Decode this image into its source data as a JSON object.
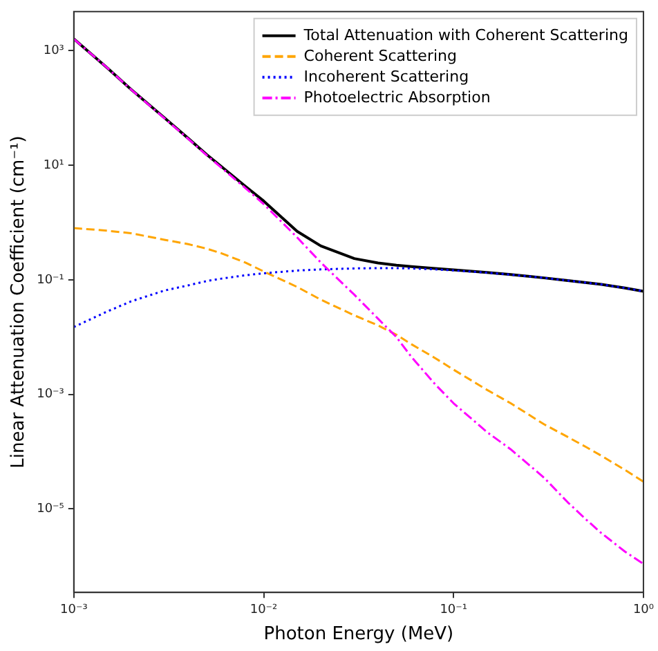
{
  "chart_data": {
    "type": "line",
    "xlabel": "Photon Energy (MeV)",
    "ylabel": "Linear Attenuation Coefficient (cm⁻¹)",
    "x": [
      0.001,
      0.0015,
      0.002,
      0.003,
      0.004,
      0.005,
      0.006,
      0.008,
      0.01,
      0.015,
      0.02,
      0.03,
      0.04,
      0.05,
      0.06,
      0.08,
      0.1,
      0.15,
      0.2,
      0.3,
      0.4,
      0.5,
      0.6,
      0.8,
      1.0
    ],
    "series": [
      {
        "name": "Total Attenuation with Coherent Scattering",
        "color": "#000000",
        "line_style": "solid",
        "values": [
          1600,
          501,
          211,
          67,
          29.5,
          15.4,
          9.4,
          4.3,
          2.37,
          0.7,
          0.39,
          0.235,
          0.197,
          0.18,
          0.17,
          0.158,
          0.149,
          0.134,
          0.124,
          0.108,
          0.097,
          0.089,
          0.083,
          0.072,
          0.063
        ]
      },
      {
        "name": "Coherent Scattering",
        "color": "#ffa500",
        "line_style": "dashed",
        "values": [
          0.8,
          0.72,
          0.65,
          0.5,
          0.42,
          0.35,
          0.29,
          0.2,
          0.14,
          0.075,
          0.045,
          0.024,
          0.016,
          0.011,
          0.0075,
          0.0043,
          0.0027,
          0.0012,
          0.0007,
          0.0003,
          0.00018,
          0.00012,
          8.5e-05,
          4.8e-05,
          3e-05
        ]
      },
      {
        "name": "Incoherent Scattering",
        "color": "#0000ff",
        "line_style": "dotted",
        "values": [
          0.015,
          0.028,
          0.042,
          0.065,
          0.08,
          0.095,
          0.105,
          0.12,
          0.13,
          0.145,
          0.152,
          0.158,
          0.16,
          0.16,
          0.158,
          0.152,
          0.146,
          0.133,
          0.123,
          0.108,
          0.097,
          0.089,
          0.083,
          0.072,
          0.063
        ]
      },
      {
        "name": "Photoelectric Absorption",
        "color": "#ff00ff",
        "line_style": "dashdot",
        "values": [
          1600,
          500,
          210,
          66,
          29,
          15,
          9,
          4,
          2.1,
          0.55,
          0.2,
          0.055,
          0.021,
          0.01,
          0.0045,
          0.0015,
          0.0007,
          0.00022,
          0.00011,
          3.5e-05,
          1.3e-05,
          6.5e-06,
          3.8e-06,
          1.8e-06,
          1.1e-06
        ]
      }
    ],
    "log": "xy",
    "xlim": [
      0.001,
      1
    ],
    "ylim": [
      3.5e-07,
      4800
    ],
    "xticks": [
      {
        "value": 0.001,
        "label": "10⁻³"
      },
      {
        "value": 0.01,
        "label": "10⁻²"
      },
      {
        "value": 0.1,
        "label": "10⁻¹"
      },
      {
        "value": 1,
        "label": "10⁰"
      }
    ],
    "yticks": [
      {
        "value": 1e-05,
        "label": "10⁻⁵"
      },
      {
        "value": 0.001,
        "label": "10⁻³"
      },
      {
        "value": 0.1,
        "label": "10⁻¹"
      },
      {
        "value": 10,
        "label": "10¹"
      },
      {
        "value": 1000,
        "label": "10³"
      }
    ],
    "grid": false,
    "legend": "top right"
  }
}
